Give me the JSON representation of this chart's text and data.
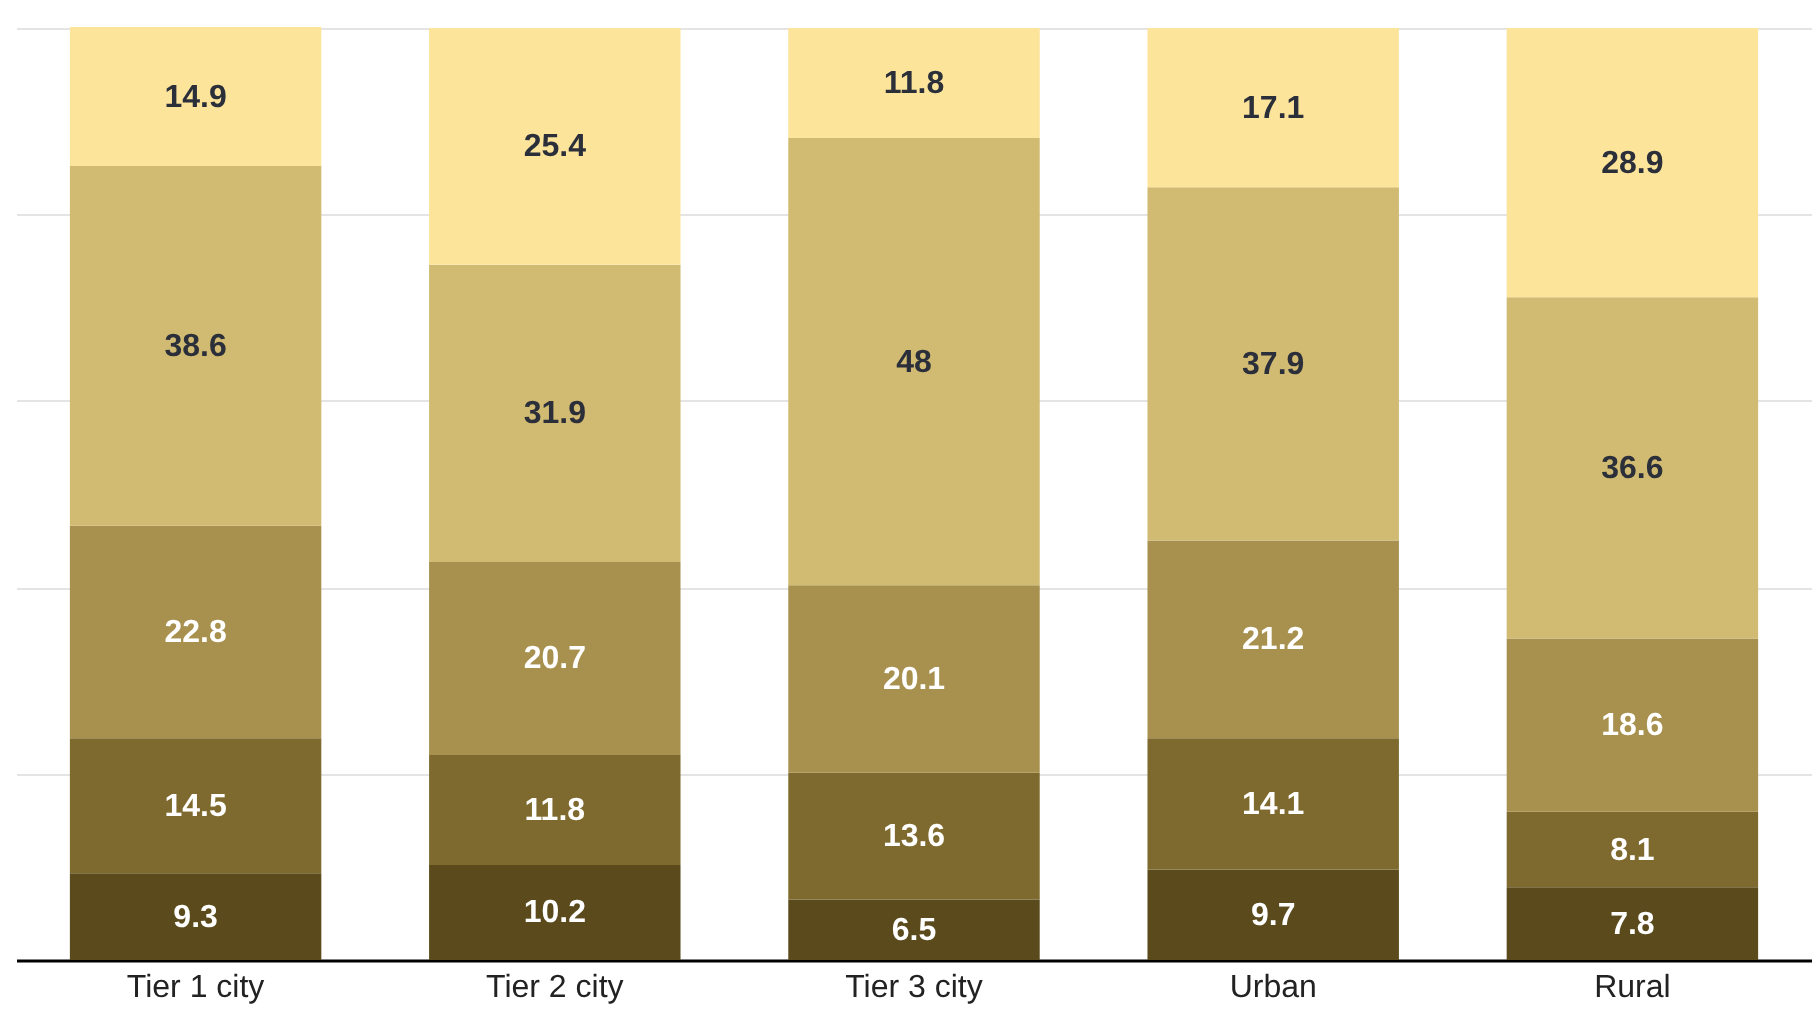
{
  "chart_data": {
    "type": "bar",
    "stacked": true,
    "categories": [
      "Tier 1 city",
      "Tier 2 city",
      "Tier 3 city",
      "Urban",
      "Rural"
    ],
    "series": [
      {
        "color": "#5a4a1c",
        "values": [
          9.3,
          10.2,
          6.5,
          9.7,
          7.8
        ]
      },
      {
        "color": "#7e6a2e",
        "values": [
          14.5,
          11.8,
          13.6,
          14.1,
          8.1
        ]
      },
      {
        "color": "#a8914f",
        "values": [
          22.8,
          20.7,
          20.1,
          21.2,
          18.6
        ]
      },
      {
        "color": "#d1ba71",
        "values": [
          38.6,
          31.9,
          48,
          37.9,
          36.6
        ]
      },
      {
        "color": "#fde49b",
        "values": [
          14.9,
          25.4,
          11.8,
          17.1,
          28.9
        ]
      }
    ],
    "ylim": [
      0,
      100
    ],
    "yticks": [
      0,
      20,
      40,
      60,
      80,
      100
    ],
    "grid": "y",
    "tick_labels": "x",
    "data_labels": true
  }
}
